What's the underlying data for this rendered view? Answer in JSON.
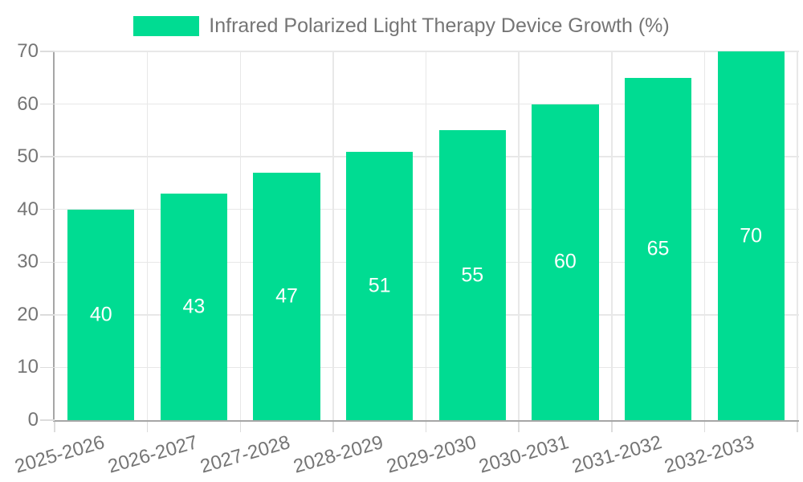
{
  "chart_data": {
    "type": "bar",
    "legend_label": "Infrared Polarized Light Therapy Device Growth (%)",
    "legend_position": "top",
    "categories": [
      "2025-2026",
      "2026-2027",
      "2027-2028",
      "2028-2029",
      "2029-2030",
      "2030-2031",
      "2031-2032",
      "2032-2033"
    ],
    "values": [
      40,
      43,
      47,
      51,
      55,
      60,
      65,
      70
    ],
    "xlabel": "",
    "ylabel": "",
    "ylim": [
      0,
      70
    ],
    "yticks": [
      0,
      10,
      20,
      30,
      40,
      50,
      60,
      70
    ],
    "grid": true,
    "bar_color": "#00DC92",
    "value_label_color": "#FFFFFF",
    "text_color": "#757575",
    "axis_color": "#A6A6A6",
    "grid_color": "#E8E8E8",
    "tick_color": "#DCDCDC",
    "background_color": "#FFFFFF"
  }
}
